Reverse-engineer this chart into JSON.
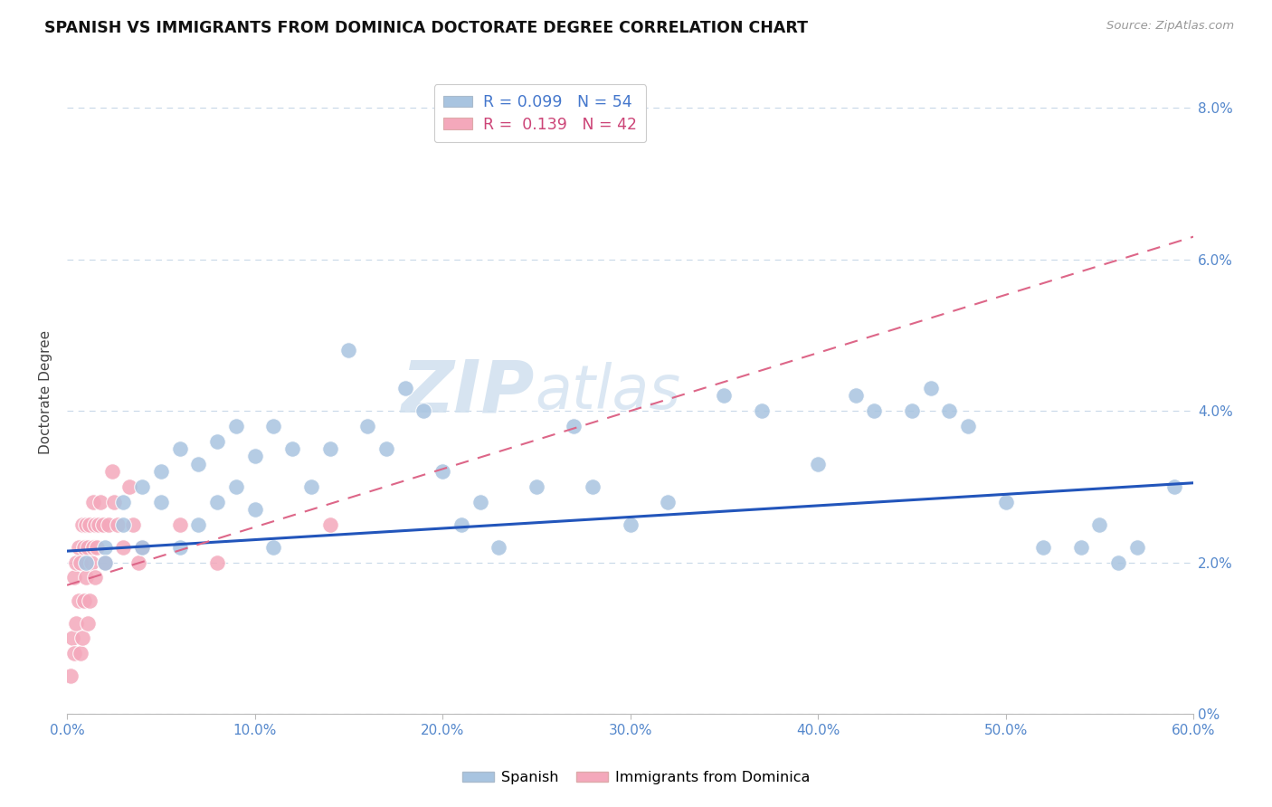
{
  "title": "SPANISH VS IMMIGRANTS FROM DOMINICA DOCTORATE DEGREE CORRELATION CHART",
  "source_text": "Source: ZipAtlas.com",
  "ylabel": "Doctorate Degree",
  "xlim": [
    0.0,
    0.6
  ],
  "ylim": [
    0.0,
    0.085
  ],
  "ytick_labels": [
    "0%",
    "2.0%",
    "4.0%",
    "6.0%",
    "8.0%"
  ],
  "ytick_values": [
    0.0,
    0.02,
    0.04,
    0.06,
    0.08
  ],
  "xtick_labels": [
    "0.0%",
    "10.0%",
    "20.0%",
    "30.0%",
    "40.0%",
    "50.0%",
    "60.0%"
  ],
  "xtick_values": [
    0.0,
    0.1,
    0.2,
    0.3,
    0.4,
    0.5,
    0.6
  ],
  "spanish_color": "#a8c4e0",
  "dominica_color": "#f4a8bb",
  "spanish_line_color": "#2255bb",
  "dominica_line_color": "#dd6688",
  "r_spanish": 0.099,
  "n_spanish": 54,
  "r_dominica": 0.139,
  "n_dominica": 42,
  "background_color": "#ffffff",
  "grid_color": "#c8d8e8",
  "watermark_zip": "ZIP",
  "watermark_atlas": "atlas",
  "legend_label_spanish": "Spanish",
  "legend_label_dominica": "Immigrants from Dominica",
  "spanish_x": [
    0.01,
    0.02,
    0.02,
    0.03,
    0.03,
    0.04,
    0.04,
    0.05,
    0.05,
    0.06,
    0.06,
    0.07,
    0.07,
    0.08,
    0.08,
    0.09,
    0.09,
    0.1,
    0.1,
    0.11,
    0.11,
    0.12,
    0.13,
    0.14,
    0.15,
    0.16,
    0.17,
    0.18,
    0.19,
    0.2,
    0.21,
    0.22,
    0.23,
    0.25,
    0.27,
    0.28,
    0.3,
    0.32,
    0.35,
    0.37,
    0.4,
    0.42,
    0.43,
    0.45,
    0.46,
    0.47,
    0.48,
    0.5,
    0.52,
    0.54,
    0.55,
    0.56,
    0.57,
    0.59
  ],
  "spanish_y": [
    0.02,
    0.022,
    0.02,
    0.028,
    0.025,
    0.03,
    0.022,
    0.032,
    0.028,
    0.035,
    0.022,
    0.033,
    0.025,
    0.036,
    0.028,
    0.038,
    0.03,
    0.034,
    0.027,
    0.038,
    0.022,
    0.035,
    0.03,
    0.035,
    0.048,
    0.038,
    0.035,
    0.043,
    0.04,
    0.032,
    0.025,
    0.028,
    0.022,
    0.03,
    0.038,
    0.03,
    0.025,
    0.028,
    0.042,
    0.04,
    0.033,
    0.042,
    0.04,
    0.04,
    0.043,
    0.04,
    0.038,
    0.028,
    0.022,
    0.022,
    0.025,
    0.02,
    0.022,
    0.03
  ],
  "dominica_x": [
    0.002,
    0.003,
    0.004,
    0.004,
    0.005,
    0.005,
    0.006,
    0.006,
    0.007,
    0.007,
    0.008,
    0.008,
    0.009,
    0.009,
    0.01,
    0.01,
    0.011,
    0.011,
    0.012,
    0.012,
    0.013,
    0.014,
    0.014,
    0.015,
    0.015,
    0.016,
    0.017,
    0.018,
    0.019,
    0.02,
    0.022,
    0.024,
    0.025,
    0.027,
    0.03,
    0.033,
    0.035,
    0.038,
    0.04,
    0.06,
    0.08,
    0.14
  ],
  "dominica_y": [
    0.005,
    0.01,
    0.008,
    0.018,
    0.012,
    0.02,
    0.015,
    0.022,
    0.008,
    0.02,
    0.01,
    0.025,
    0.015,
    0.022,
    0.018,
    0.025,
    0.012,
    0.022,
    0.015,
    0.025,
    0.02,
    0.022,
    0.028,
    0.018,
    0.025,
    0.022,
    0.025,
    0.028,
    0.025,
    0.02,
    0.025,
    0.032,
    0.028,
    0.025,
    0.022,
    0.03,
    0.025,
    0.02,
    0.022,
    0.025,
    0.02,
    0.025
  ],
  "spanish_line_y0": 0.0215,
  "spanish_line_y1": 0.0305,
  "dominica_line_y0": 0.017,
  "dominica_line_y1": 0.063
}
